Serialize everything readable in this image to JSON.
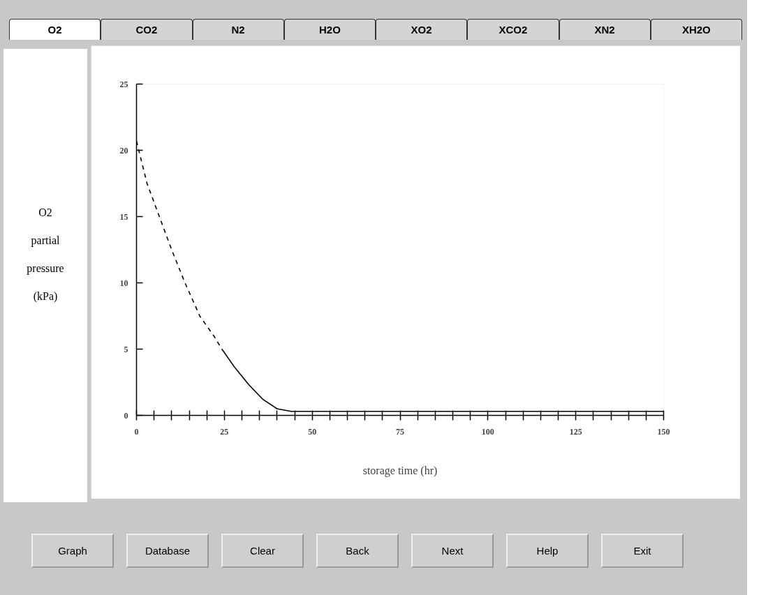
{
  "chart_data": {
    "type": "line",
    "xlabel": "storage time (hr)",
    "ylabel": "O2\npartial\npressure\n(kPa)",
    "xlim": [
      0,
      150
    ],
    "ylim": [
      0,
      25
    ],
    "xticks": [
      0,
      {
        "value": 5,
        "label": null
      },
      {
        "value": 10,
        "label": null
      },
      {
        "value": 15,
        "label": null
      },
      {
        "value": 20,
        "label": null
      },
      25,
      {
        "value": 30,
        "label": null
      },
      {
        "value": 35,
        "label": null
      },
      {
        "value": 40,
        "label": null
      },
      {
        "value": 45,
        "label": null
      },
      50,
      {
        "value": 55,
        "label": null
      },
      {
        "value": 60,
        "label": null
      },
      {
        "value": 65,
        "label": null
      },
      {
        "value": 70,
        "label": null
      },
      75,
      {
        "value": 80,
        "label": null
      },
      {
        "value": 85,
        "label": null
      },
      {
        "value": 90,
        "label": null
      },
      {
        "value": 95,
        "label": null
      },
      100,
      {
        "value": 105,
        "label": null
      },
      {
        "value": 110,
        "label": null
      },
      {
        "value": 115,
        "label": null
      },
      {
        "value": 120,
        "label": null
      },
      125,
      {
        "value": 130,
        "label": null
      },
      {
        "value": 135,
        "label": null
      },
      {
        "value": 140,
        "label": null
      },
      {
        "value": 145,
        "label": null
      },
      150
    ],
    "yticks": [
      0,
      5,
      10,
      15,
      20,
      25
    ],
    "grid": false,
    "series": [
      {
        "color": "#000000",
        "line_style": "dashed",
        "x": [
          0,
          3,
          6.5,
          10,
          13.8,
          18,
          22,
          24.3
        ],
        "values": [
          20.7,
          17.5,
          15,
          12.5,
          10,
          7.5,
          6,
          5
        ]
      },
      {
        "color": "#000000",
        "line_style": "solid",
        "x": [
          24.3,
          28,
          32,
          36,
          40,
          44,
          50,
          150
        ],
        "values": [
          5,
          3.6,
          2.3,
          1.2,
          0.5,
          0.3,
          0.3,
          0.3
        ]
      }
    ],
    "annotations": [
      "O2",
      "CO2",
      "N2",
      "H2O",
      "XO2",
      "XCO2",
      "XN2",
      "XH2O",
      "Graph",
      "Database",
      "Clear",
      "Back",
      "Next",
      "Help",
      "Exit"
    ]
  }
}
